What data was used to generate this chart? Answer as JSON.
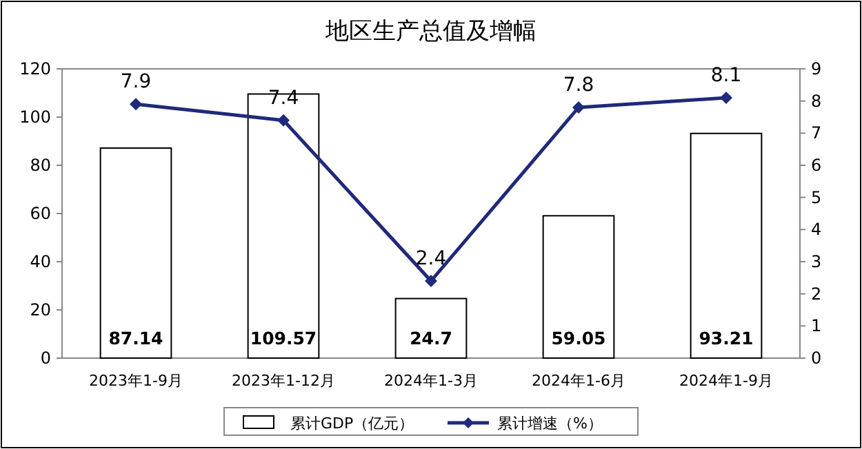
{
  "chart_data": {
    "type": "bar",
    "title": "地区生产总值及增幅",
    "categories": [
      "2023年1-9月",
      "2023年1-12月",
      "2024年1-3月",
      "2024年1-6月",
      "2024年1-9月"
    ],
    "series": [
      {
        "name": "累计GDP（亿元）",
        "color": "#ffffff",
        "values": [
          87.14,
          109.57,
          24.7,
          59.05,
          93.21
        ]
      },
      {
        "name": "累计增速（%）",
        "type": "line",
        "axis": "y2",
        "color": "#1f2a7a",
        "values": [
          7.9,
          7.4,
          2.4,
          7.8,
          8.1
        ]
      }
    ],
    "ylim": [
      0,
      120
    ],
    "yticks": [
      0,
      20,
      40,
      60,
      80,
      100,
      120
    ],
    "y2lim": [
      0,
      9
    ],
    "y2ticks": [
      0,
      1,
      2,
      3,
      4,
      5,
      6,
      7,
      8,
      9
    ],
    "data_labels": true,
    "legend": "bottom",
    "marker": "diamond",
    "line_style": "solid",
    "grid": false
  }
}
